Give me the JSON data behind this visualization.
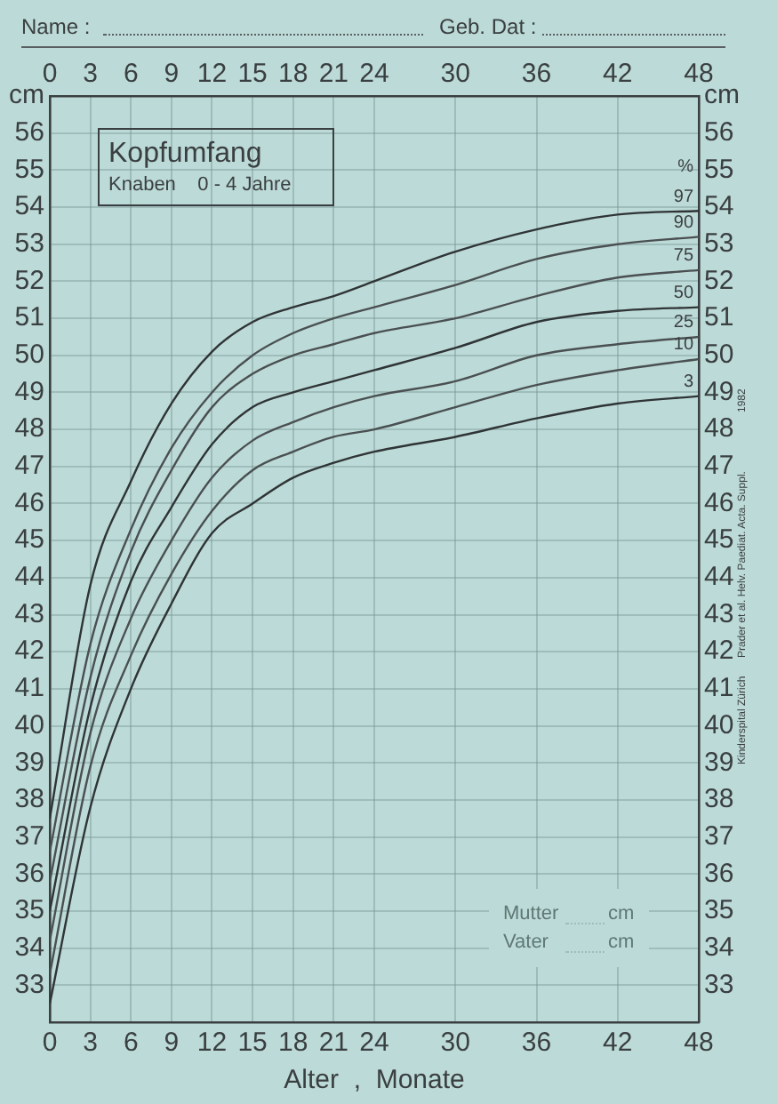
{
  "chart_data": {
    "type": "line",
    "title": "Kopfumfang",
    "subtitle": "Knaben    0 - 4 Jahre",
    "xlabel": "Alter  ,  Monate",
    "legend_title": "%",
    "x": [
      0,
      3,
      6,
      9,
      12,
      15,
      18,
      21,
      24,
      30,
      36,
      42,
      48
    ],
    "series": [
      {
        "name": "97",
        "color": "#2f3436",
        "values": [
          37.5,
          43.8,
          46.6,
          48.7,
          50.1,
          50.9,
          51.3,
          51.6,
          52.0,
          52.8,
          53.4,
          53.8,
          53.9
        ]
      },
      {
        "name": "90",
        "color": "#4a5052",
        "values": [
          36.6,
          42.2,
          45.3,
          47.5,
          49.0,
          50.0,
          50.6,
          51.0,
          51.3,
          51.9,
          52.6,
          53.0,
          53.2
        ]
      },
      {
        "name": "75",
        "color": "#4a5052",
        "values": [
          35.8,
          41.3,
          44.7,
          46.9,
          48.6,
          49.5,
          50.0,
          50.3,
          50.6,
          51.0,
          51.6,
          52.1,
          52.3
        ]
      },
      {
        "name": "50",
        "color": "#2f3436",
        "values": [
          35.0,
          40.5,
          43.9,
          45.9,
          47.6,
          48.6,
          49.0,
          49.3,
          49.6,
          50.2,
          50.9,
          51.2,
          51.3
        ]
      },
      {
        "name": "25",
        "color": "#4a5052",
        "values": [
          34.2,
          39.8,
          42.9,
          45.0,
          46.7,
          47.7,
          48.2,
          48.6,
          48.9,
          49.3,
          50.0,
          50.3,
          50.5
        ]
      },
      {
        "name": "10",
        "color": "#4a5052",
        "values": [
          33.3,
          38.9,
          41.9,
          44.1,
          45.8,
          46.9,
          47.4,
          47.8,
          48.0,
          48.6,
          49.2,
          49.6,
          49.9
        ]
      },
      {
        "name": "3",
        "color": "#2f3436",
        "values": [
          32.5,
          37.8,
          41.0,
          43.3,
          45.2,
          46.0,
          46.7,
          47.1,
          47.4,
          47.8,
          48.3,
          48.7,
          48.9
        ]
      }
    ],
    "xlim": [
      0,
      48
    ],
    "xticks": [
      0,
      3,
      6,
      9,
      12,
      15,
      18,
      21,
      24,
      30,
      36,
      42,
      48
    ],
    "x2lim": [
      0,
      48
    ],
    "x2ticks": [
      0,
      3,
      6,
      9,
      12,
      15,
      18,
      21,
      24,
      30,
      36,
      42,
      48
    ],
    "ylim": [
      32,
      57
    ],
    "yticks": [
      33,
      34,
      35,
      36,
      37,
      38,
      39,
      40,
      41,
      42,
      43,
      44,
      45,
      46,
      47,
      48,
      49,
      50,
      51,
      52,
      53,
      54,
      55,
      56,
      {
        "value": 57,
        "label": "cm"
      }
    ],
    "y2lim": [
      32,
      57
    ],
    "y2ticks": [
      33,
      34,
      35,
      36,
      37,
      38,
      39,
      40,
      41,
      42,
      43,
      44,
      45,
      46,
      47,
      48,
      49,
      50,
      51,
      52,
      53,
      54,
      55,
      56,
      {
        "value": 57,
        "label": "cm"
      }
    ],
    "grid": true,
    "legend": false,
    "marker": "none",
    "line_style": "solid",
    "annotations": [
      "Name :",
      "Geb. Dat :",
      "Mutter",
      "cm",
      "Vater",
      "cm",
      "Kinderspital Zürich",
      "Prader et al. Helv. Paediat. Acta. Suppl.",
      "1982"
    ]
  }
}
